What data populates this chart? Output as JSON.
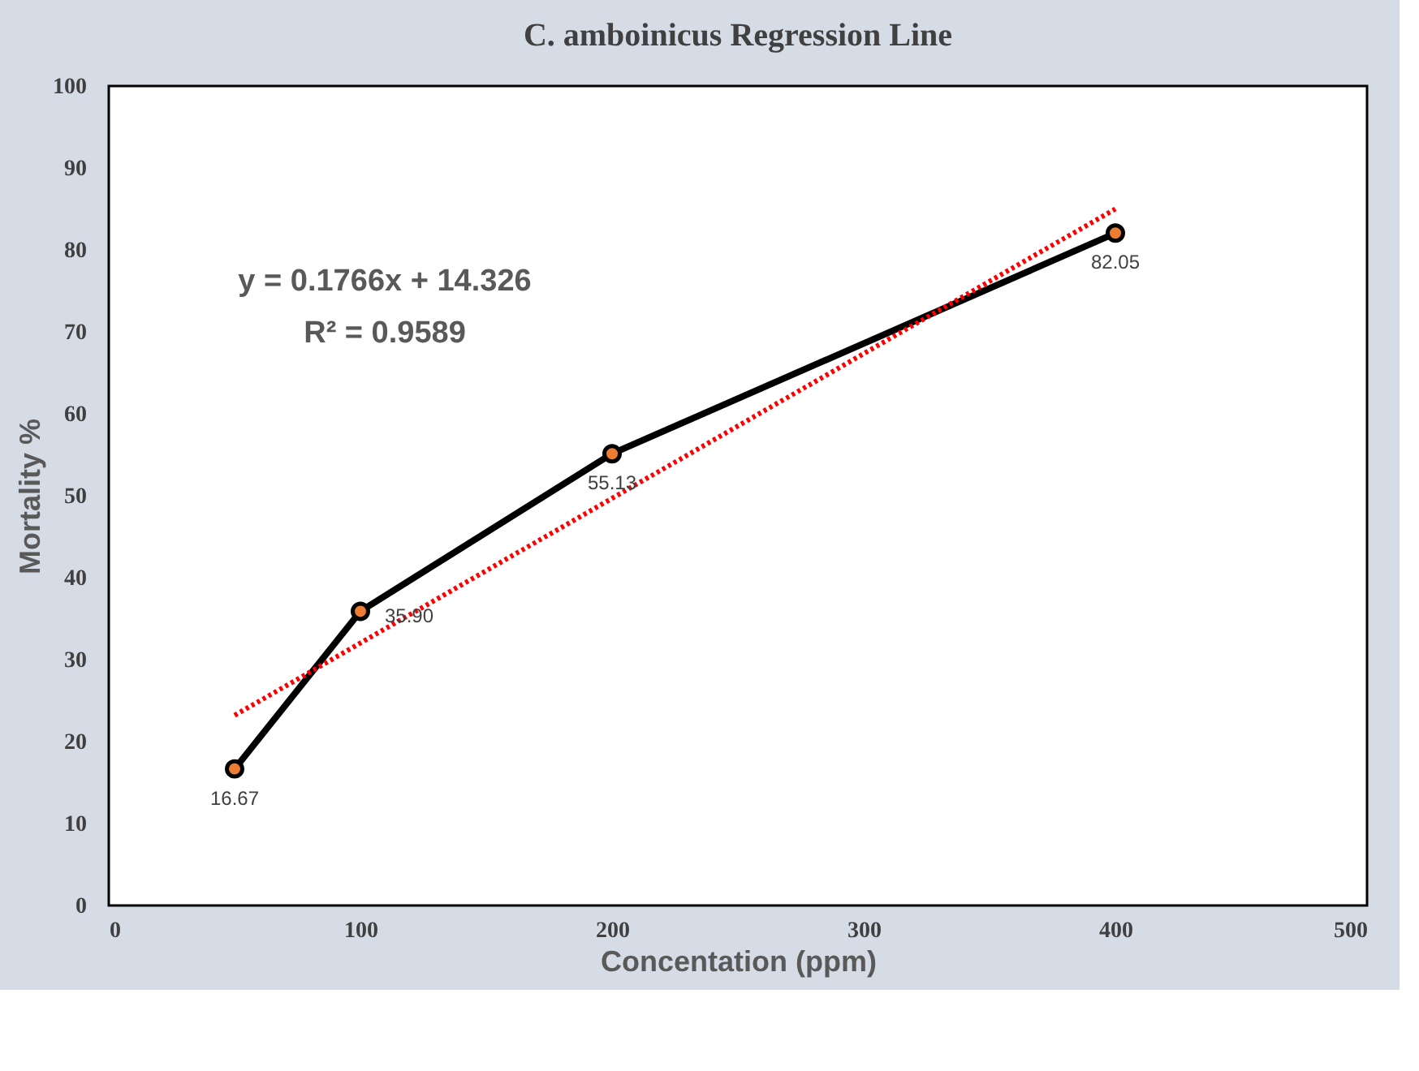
{
  "chart_data": {
    "type": "line",
    "title": "C. amboinicus Regression Line",
    "xlabel": "Concentation (ppm)",
    "ylabel": "Mortality %",
    "x": [
      50,
      100,
      200,
      400
    ],
    "series": [
      {
        "color": "#000000",
        "values": [
          16.67,
          35.9,
          55.13,
          82.05
        ],
        "value_labels": [
          "16.67",
          "35.90",
          "55.13",
          "82.05"
        ],
        "marker": "circle",
        "line_style": "solid"
      },
      {
        "type": "line",
        "color": "#ff0000",
        "x": [
          50,
          400
        ],
        "values": [
          23.2,
          85.0
        ],
        "marker": "none",
        "line_style": "dotted"
      }
    ],
    "annotations": [
      "y = 0.1766x + 14.326",
      "R² = 0.9589"
    ],
    "xlim": [
      0,
      500
    ],
    "xticks": [
      0,
      100,
      200,
      300,
      400,
      500
    ],
    "ylim": [
      0,
      100
    ],
    "yticks": [
      0,
      10,
      20,
      30,
      40,
      50,
      60,
      70,
      80,
      90,
      100
    ],
    "grid": false
  }
}
